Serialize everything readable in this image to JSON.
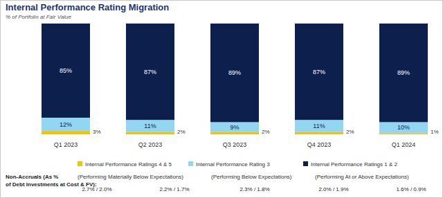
{
  "chart_data": {
    "type": "bar",
    "title": "Internal Performance Rating Migration",
    "subtitle": "% of Portfolio at Fair Value",
    "categories": [
      "Q1 2023",
      "Q2 2023",
      "Q3 2023",
      "Q4 2023",
      "Q1 2024"
    ],
    "series": [
      {
        "name": "Internal Performance Ratings 4 & 5",
        "description": "(Performing Materially Below Expectations)",
        "color": "#f2c400",
        "values": [
          3,
          2,
          2,
          2,
          1
        ],
        "value_labels": [
          "3%",
          "2%",
          "2%",
          "2%",
          "1%"
        ]
      },
      {
        "name": "Internal Performance Rating 3",
        "description": "(Performing Below Expectations)",
        "color": "#93d6f2",
        "values": [
          12,
          11,
          9,
          11,
          10
        ],
        "value_labels": [
          "12%",
          "11%",
          "9%",
          "11%",
          "10%"
        ]
      },
      {
        "name": "Internal Performance Ratings 1 & 2",
        "description": "(Performing At or Above Expectations)",
        "color": "#0c1f4d",
        "values": [
          85,
          87,
          89,
          87,
          89
        ],
        "value_labels": [
          "85%",
          "87%",
          "89%",
          "87%",
          "89%"
        ]
      }
    ],
    "stacked": true,
    "data_labels": true,
    "tick_labels": "x",
    "grid": false,
    "legend": "bottom",
    "ylim": [
      0,
      100
    ],
    "non_accruals": {
      "label": [
        "Non-Accruals (As %",
        "of Debt Investments at Cost & FV):"
      ],
      "values": [
        "2.7% / 2.0%",
        "2.2% / 1.7%",
        "2.3% / 1.8%",
        "2.0% / 1.9%",
        "1.6% / 0.9%"
      ]
    }
  }
}
